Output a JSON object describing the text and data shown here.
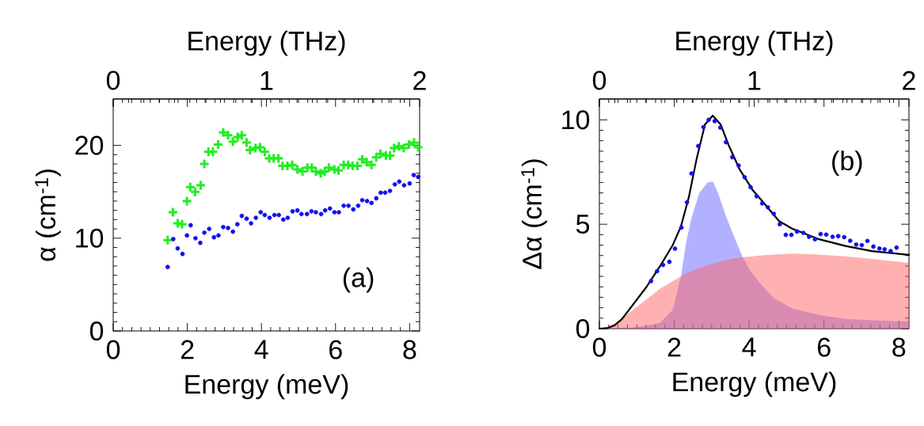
{
  "chart_data": [
    {
      "type": "scatter",
      "xlabel": "Energy (meV)",
      "x2label": "Energy (THz)",
      "ylabel": "α (cm$^{-1}$)",
      "xlim": [
        0,
        8.27
      ],
      "xticks": [
        0,
        2,
        4,
        6,
        8
      ],
      "x2lim": [
        0,
        2
      ],
      "x2ticks": [
        0,
        1,
        2
      ],
      "ylim": [
        0,
        25
      ],
      "yticks": [
        0,
        10,
        20
      ],
      "annotations": [
        "(a)"
      ],
      "series": [
        {
          "color": "#22ee22",
          "marker": "cross",
          "x": [
            1.47,
            1.61,
            1.74,
            1.86,
            1.99,
            2.08,
            2.21,
            2.36,
            2.46,
            2.57,
            2.69,
            2.83,
            2.97,
            3.1,
            3.23,
            3.36,
            3.47,
            3.6,
            3.69,
            3.84,
            3.96,
            4.09,
            4.21,
            4.33,
            4.46,
            4.57,
            4.7,
            4.83,
            4.97,
            5.11,
            5.24,
            5.36,
            5.47,
            5.6,
            5.71,
            5.82,
            5.97,
            6.08,
            6.22,
            6.34,
            6.46,
            6.59,
            6.72,
            6.84,
            6.97,
            7.1,
            7.21,
            7.36,
            7.47,
            7.58,
            7.71,
            7.84,
            7.98,
            8.12,
            8.23
          ],
          "values": [
            9.8,
            12.8,
            11.6,
            11.5,
            14.0,
            15.5,
            15.0,
            15.7,
            18.0,
            19.3,
            19.3,
            20.1,
            21.4,
            21.1,
            20.4,
            20.9,
            21.1,
            20.3,
            19.5,
            19.7,
            19.8,
            19.3,
            18.6,
            18.6,
            18.6,
            17.8,
            17.8,
            17.9,
            17.4,
            17.2,
            17.6,
            17.6,
            17.2,
            17.0,
            17.2,
            17.6,
            17.4,
            17.3,
            17.9,
            17.9,
            17.8,
            17.8,
            18.5,
            18.2,
            17.9,
            18.7,
            19.1,
            18.9,
            18.9,
            19.7,
            19.9,
            19.7,
            20.1,
            20.3,
            19.8
          ]
        },
        {
          "color": "#1111ee",
          "marker": "circle",
          "x": [
            1.47,
            1.62,
            1.74,
            1.87,
            1.99,
            2.09,
            2.22,
            2.35,
            2.46,
            2.59,
            2.72,
            2.84,
            2.97,
            3.1,
            3.23,
            3.35,
            3.47,
            3.6,
            3.72,
            3.85,
            3.98,
            4.09,
            4.22,
            4.35,
            4.47,
            4.59,
            4.71,
            4.84,
            4.97,
            5.08,
            5.23,
            5.35,
            5.47,
            5.61,
            5.72,
            5.85,
            5.97,
            6.09,
            6.22,
            6.35,
            6.48,
            6.61,
            6.72,
            6.85,
            6.97,
            7.1,
            7.22,
            7.34,
            7.47,
            7.6,
            7.72,
            7.85,
            8.0,
            8.11,
            8.23
          ],
          "values": [
            6.9,
            9.9,
            8.9,
            8.3,
            10.3,
            11.4,
            10.0,
            9.5,
            10.6,
            11.0,
            10.1,
            10.3,
            11.2,
            11.1,
            10.7,
            11.5,
            12.4,
            12.1,
            11.6,
            12.2,
            12.8,
            12.5,
            12.2,
            12.5,
            12.5,
            12.0,
            12.2,
            12.9,
            13.0,
            12.6,
            12.6,
            12.9,
            12.8,
            12.6,
            13.0,
            13.2,
            12.8,
            12.8,
            13.5,
            13.5,
            13.1,
            13.5,
            14.1,
            14.0,
            13.8,
            14.3,
            14.9,
            14.9,
            15.1,
            15.8,
            16.1,
            15.7,
            15.9,
            16.8,
            16.6
          ]
        }
      ]
    },
    {
      "type": "scatter",
      "xlabel": "Energy (meV)",
      "x2label": "Energy (THz)",
      "ylabel": "Δα (cm$^{-1}$)",
      "xlim": [
        0,
        8.27
      ],
      "xticks": [
        0,
        2,
        4,
        6,
        8
      ],
      "x2lim": [
        0,
        2
      ],
      "x2ticks": [
        0,
        1,
        2
      ],
      "ylim": [
        0,
        11
      ],
      "yticks": [
        0,
        5,
        10
      ],
      "annotations": [
        "(b)"
      ],
      "series": [
        {
          "type": "area",
          "color": "#6464ff",
          "x": [
            0,
            0.9,
            1.26,
            1.61,
            1.96,
            2.18,
            2.32,
            2.46,
            2.67,
            2.89,
            3.03,
            3.17,
            3.38,
            3.6,
            3.81,
            4.02,
            4.3,
            4.66,
            5.16,
            5.87,
            6.57,
            7.28,
            8.27
          ],
          "values": [
            0,
            0.06,
            0.15,
            0.27,
            0.9,
            2.5,
            4.15,
            5.3,
            6.5,
            7.0,
            7.05,
            6.5,
            5.4,
            4.4,
            3.5,
            2.8,
            2.15,
            1.46,
            0.96,
            0.65,
            0.46,
            0.4,
            0.34
          ]
        },
        {
          "type": "area",
          "color": "#ff6464",
          "x": [
            0,
            0.19,
            0.55,
            0.9,
            1.26,
            1.61,
            1.96,
            2.32,
            2.67,
            3.03,
            3.38,
            3.74,
            4.09,
            4.45,
            5.16,
            5.87,
            6.57,
            7.28,
            8.27
          ],
          "values": [
            0,
            0.05,
            0.4,
            0.9,
            1.4,
            1.9,
            2.28,
            2.65,
            2.9,
            3.11,
            3.28,
            3.4,
            3.46,
            3.53,
            3.59,
            3.55,
            3.46,
            3.34,
            3.15
          ]
        },
        {
          "color": "#1111ee",
          "marker": "circle",
          "x": [
            1.38,
            1.54,
            1.7,
            1.87,
            2.02,
            2.19,
            2.34,
            2.46,
            2.64,
            2.78,
            2.92,
            3.08,
            3.23,
            3.38,
            3.55,
            3.72,
            3.88,
            4.04,
            4.2,
            4.35,
            4.5,
            4.66,
            4.82,
            4.98,
            5.13,
            5.28,
            5.45,
            5.6,
            5.76,
            5.91,
            6.06,
            6.23,
            6.38,
            6.54,
            6.7,
            6.86,
            7.01,
            7.16,
            7.32,
            7.48,
            7.62,
            7.78,
            7.94
          ],
          "values": [
            2.28,
            2.75,
            3.05,
            3.2,
            3.83,
            4.84,
            6.05,
            7.43,
            8.75,
            9.65,
            10.0,
            9.94,
            9.63,
            8.93,
            8.21,
            7.81,
            7.25,
            6.78,
            6.34,
            6.0,
            5.81,
            5.5,
            5.0,
            4.49,
            4.49,
            4.65,
            4.59,
            4.4,
            4.28,
            4.53,
            4.5,
            4.4,
            4.43,
            4.38,
            4.21,
            4.03,
            4.0,
            4.2,
            3.93,
            3.84,
            3.8,
            3.71,
            3.88
          ]
        },
        {
          "type": "line",
          "color": "#000000",
          "marker": "none",
          "x": [
            0,
            0.2,
            0.4,
            0.6,
            0.9,
            1.26,
            1.61,
            1.96,
            2.18,
            2.39,
            2.6,
            2.82,
            3.03,
            3.24,
            3.45,
            3.74,
            4.09,
            4.45,
            4.8,
            5.16,
            5.87,
            6.57,
            7.28,
            8.27
          ],
          "values": [
            0,
            0.02,
            0.15,
            0.45,
            1.15,
            2.0,
            2.96,
            4.0,
            4.9,
            6.3,
            8.15,
            9.78,
            10.2,
            9.78,
            8.8,
            7.65,
            6.65,
            5.9,
            5.15,
            4.78,
            4.28,
            3.96,
            3.71,
            3.53
          ]
        }
      ]
    }
  ]
}
